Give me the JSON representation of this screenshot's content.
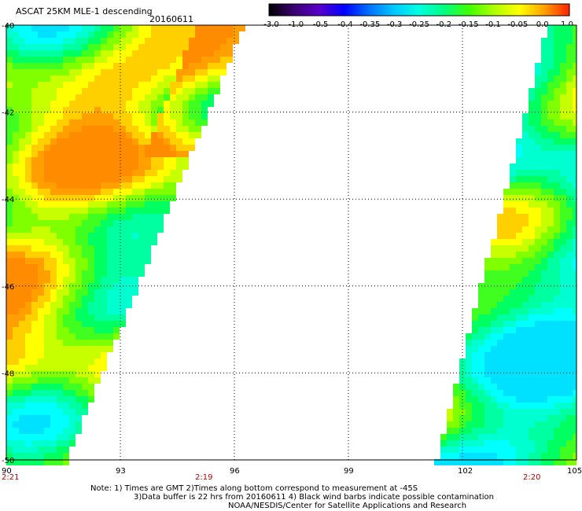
{
  "header": {
    "title": "ASCAT 25KM MLE-1 descending",
    "date": "20160611"
  },
  "colorbar": {
    "labels": [
      "-3.0",
      "-1.0",
      "-0.5",
      "-0.4",
      "-0.35",
      "-0.3",
      "-0.25",
      "-0.2",
      "-0.15",
      "-0.1",
      "-0.05",
      "0.0",
      "1.0"
    ],
    "colors": [
      "#000000",
      "#3a0070",
      "#5a00c8",
      "#0000ff",
      "#0070ff",
      "#00c8ff",
      "#00ffe0",
      "#00ff80",
      "#40ff00",
      "#b0ff00",
      "#ffff00",
      "#ffa000",
      "#ff2000"
    ]
  },
  "map": {
    "lat_labels": [
      "-40",
      "-42",
      "-44",
      "-46",
      "-48",
      "-50"
    ],
    "lon_labels": [
      "90",
      "93",
      "96",
      "99",
      "102",
      "105"
    ],
    "times": [
      "2:21",
      "2:19",
      "2:20"
    ],
    "time_color": "#c00000"
  },
  "footer": {
    "line1": "Note: 1) Times are GMT 2)Times along bottom correspond to measurement at -45S",
    "line2": "3)Data buffer is 22 hrs from 20160611 4) Black wind barbs indicate possible contamination",
    "line3": "NOAA/NESDIS/Center for Satellite Applications and Research"
  }
}
